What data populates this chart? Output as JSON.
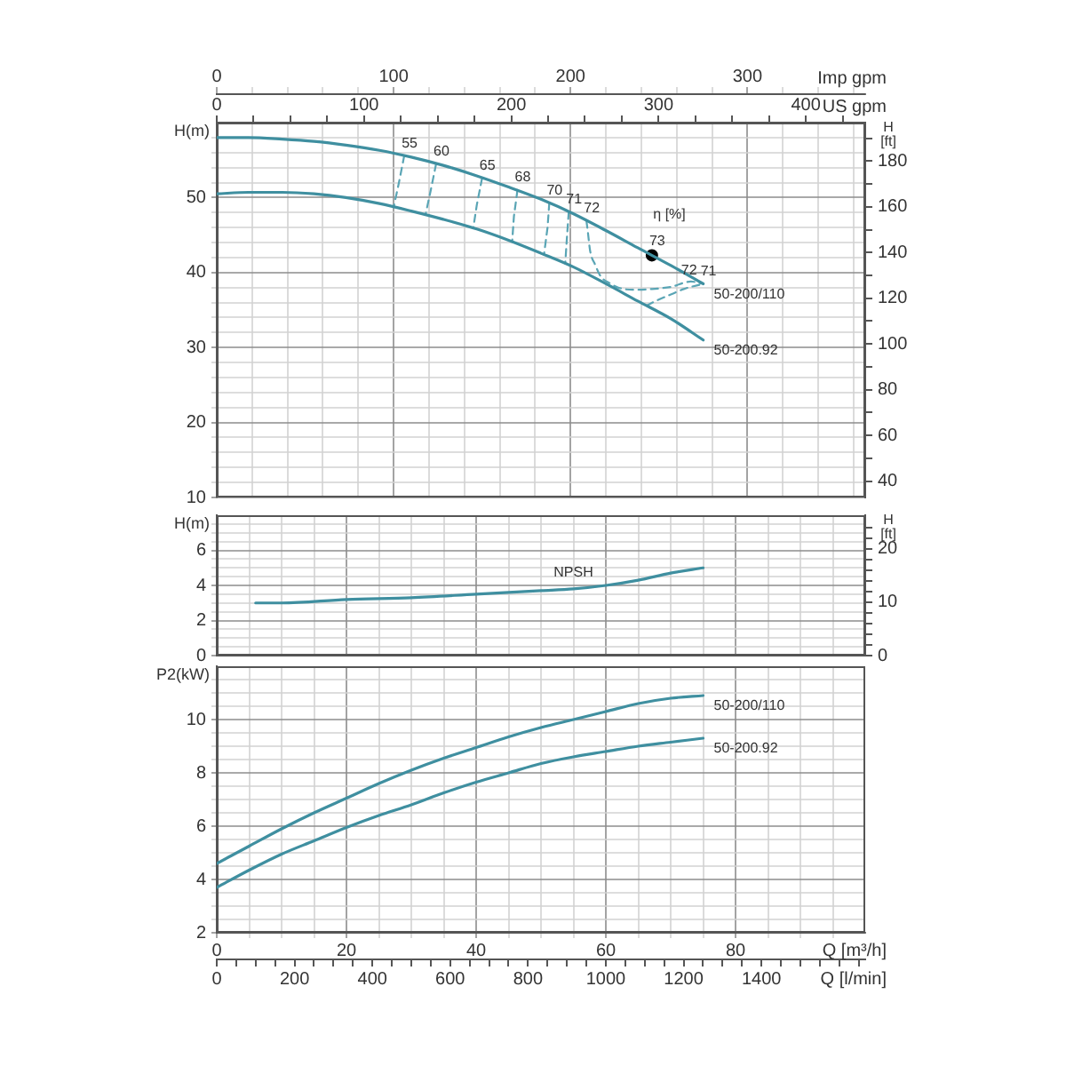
{
  "chart_data": [
    {
      "type": "line",
      "ylabel": "H(m)",
      "y2label": "H [ft]",
      "xlabel": "Imp gpm",
      "x2label": "US gpm",
      "x": [
        0,
        18,
        37,
        55,
        73,
        92,
        110,
        128,
        147,
        165,
        183,
        202,
        220,
        238,
        257,
        275
      ],
      "xlim": [
        0,
        366.6
      ],
      "xticks": [
        0,
        {
          "value": 20,
          "label": null
        },
        {
          "value": 40,
          "label": null
        },
        {
          "value": 60,
          "label": null
        },
        {
          "value": 80,
          "label": null
        },
        100,
        {
          "value": 120,
          "label": null
        },
        {
          "value": 140,
          "label": null
        },
        {
          "value": 160,
          "label": null
        },
        {
          "value": 180,
          "label": null
        },
        200,
        {
          "value": 220,
          "label": null
        },
        {
          "value": 240,
          "label": null
        },
        {
          "value": 260,
          "label": null
        },
        {
          "value": 280,
          "label": null
        },
        300,
        {
          "value": 320,
          "label": null
        },
        {
          "value": 340,
          "label": null
        },
        {
          "value": 360,
          "label": null
        }
      ],
      "x2lim": [
        0,
        440.3
      ],
      "x2ticks": [
        0,
        {
          "value": 25,
          "label": null
        },
        {
          "value": 50,
          "label": null
        },
        {
          "value": 75,
          "label": null
        },
        100,
        {
          "value": 125,
          "label": null
        },
        {
          "value": 150,
          "label": null
        },
        {
          "value": 175,
          "label": null
        },
        200,
        {
          "value": 225,
          "label": null
        },
        {
          "value": 250,
          "label": null
        },
        {
          "value": 275,
          "label": null
        },
        300,
        {
          "value": 325,
          "label": null
        },
        {
          "value": 350,
          "label": null
        },
        {
          "value": 375,
          "label": null
        },
        400,
        {
          "value": 425,
          "label": null
        }
      ],
      "ylim": [
        10,
        60
      ],
      "yticks": [
        10,
        {
          "value": 12,
          "label": null
        },
        {
          "value": 14,
          "label": null
        },
        {
          "value": 16,
          "label": null
        },
        {
          "value": 18,
          "label": null
        },
        20,
        {
          "value": 22,
          "label": null
        },
        {
          "value": 24,
          "label": null
        },
        {
          "value": 26,
          "label": null
        },
        {
          "value": 28,
          "label": null
        },
        30,
        {
          "value": 32,
          "label": null
        },
        {
          "value": 34,
          "label": null
        },
        {
          "value": 36,
          "label": null
        },
        {
          "value": 38,
          "label": null
        },
        40,
        {
          "value": 42,
          "label": null
        },
        {
          "value": 44,
          "label": null
        },
        {
          "value": 46,
          "label": null
        },
        {
          "value": 48,
          "label": null
        },
        50,
        {
          "value": 52,
          "label": null
        },
        {
          "value": 54,
          "label": null
        },
        {
          "value": 56,
          "label": null
        },
        {
          "value": 58,
          "label": null
        }
      ],
      "y2lim": [
        32.81,
        196.85
      ],
      "y2ticks": [
        40,
        {
          "value": 50,
          "label": null
        },
        60,
        {
          "value": 70,
          "label": null
        },
        80,
        {
          "value": 90,
          "label": null
        },
        100,
        {
          "value": 110,
          "label": null
        },
        120,
        {
          "value": 130,
          "label": null
        },
        140,
        {
          "value": 150,
          "label": null
        },
        160,
        {
          "value": 170,
          "label": null
        },
        180,
        {
          "value": 190,
          "label": null
        }
      ],
      "grid": true,
      "marker": "none",
      "series": [
        {
          "name": "50-200/110",
          "color": "#3f8fa0",
          "values": [
            58,
            58,
            57.8,
            57.5,
            57,
            56.3,
            55.4,
            54.3,
            52.9,
            51.4,
            49.8,
            47.8,
            45.6,
            43.3,
            40.9,
            38.5
          ]
        },
        {
          "name": "50-200.92",
          "color": "#3f8fa0",
          "values": [
            50.5,
            50.7,
            50.7,
            50.5,
            50,
            49.2,
            48.2,
            47.1,
            45.8,
            44.3,
            42.6,
            40.7,
            38.5,
            36.2,
            33.8,
            31
          ]
        },
        {
          "type": "line",
          "color": "#5aa5b5",
          "line_style": "dashed",
          "x": [
            106,
            103,
            100
          ],
          "values": [
            55.6,
            52,
            48.7
          ]
        },
        {
          "type": "line",
          "color": "#5aa5b5",
          "line_style": "dashed",
          "x": [
            124,
            121,
            118
          ],
          "values": [
            54.5,
            51,
            47.7
          ]
        },
        {
          "type": "line",
          "color": "#5aa5b5",
          "line_style": "dashed",
          "x": [
            150,
            147,
            145
          ],
          "values": [
            52.6,
            49,
            45.9
          ]
        },
        {
          "type": "line",
          "color": "#5aa5b5",
          "line_style": "dashed",
          "x": [
            170,
            168,
            167
          ],
          "values": [
            51,
            47.5,
            44.1
          ]
        },
        {
          "type": "line",
          "color": "#5aa5b5",
          "line_style": "dashed",
          "x": [
            188,
            187,
            185
          ],
          "values": [
            49.3,
            46,
            42.4
          ]
        },
        {
          "type": "line",
          "color": "#5aa5b5",
          "line_style": "dashed",
          "x": [
            199,
            198,
            197
          ],
          "values": [
            48.1,
            44.8,
            41.2
          ]
        },
        {
          "type": "line",
          "color": "#5aa5b5",
          "line_style": "dashed",
          "x": [
            209,
            210,
            211,
            214,
            217,
            222,
            227,
            235,
            246,
            257,
            268,
            275
          ],
          "values": [
            46.9,
            45,
            43,
            41,
            39.5,
            38.6,
            38,
            37.7,
            37.8,
            38.1,
            38.8,
            38.5
          ]
        },
        {
          "type": "line",
          "color": "#5aa5b5",
          "line_style": "dashed",
          "x": [
            243,
            249,
            257,
            264,
            275
          ],
          "values": [
            35.6,
            36.3,
            37.1,
            37.8,
            38.5
          ]
        },
        {
          "type": "scatter",
          "name": "73",
          "color": "#000000",
          "marker": "circle",
          "x": [
            246
          ],
          "values": [
            42.3
          ]
        }
      ],
      "annotations": [
        {
          "text": "55",
          "x": 106,
          "y": 55.6
        },
        {
          "text": "60",
          "x": 124,
          "y": 54.5
        },
        {
          "text": "65",
          "x": 150,
          "y": 52.6
        },
        {
          "text": "68",
          "x": 170,
          "y": 51
        },
        {
          "text": "70",
          "x": 188,
          "y": 49.3
        },
        {
          "text": "71",
          "x": 199,
          "y": 48.1
        },
        {
          "text": "72",
          "x": 209,
          "y": 46.9
        },
        "η [%]",
        {
          "text": "72",
          "x": 264,
          "y": 38.6
        },
        {
          "text": "71",
          "x": 275,
          "y": 38.5
        }
      ]
    },
    {
      "type": "line",
      "ylabel": "H(m)",
      "y2label": "H [ft]",
      "xlim": [
        0,
        100
      ],
      "xticks": [
        0,
        {
          "value": 5,
          "label": null
        },
        {
          "value": 10,
          "label": null
        },
        {
          "value": 15,
          "label": null
        },
        20,
        {
          "value": 25,
          "label": null
        },
        {
          "value": 30,
          "label": null
        },
        {
          "value": 35,
          "label": null
        },
        40,
        {
          "value": 45,
          "label": null
        },
        {
          "value": 50,
          "label": null
        },
        {
          "value": 55,
          "label": null
        },
        60,
        {
          "value": 65,
          "label": null
        },
        {
          "value": 70,
          "label": null
        },
        {
          "value": 75,
          "label": null
        },
        80,
        {
          "value": 85,
          "label": null
        },
        {
          "value": 90,
          "label": null
        },
        {
          "value": 95,
          "label": null
        }
      ],
      "ylim": [
        0,
        8
      ],
      "yticks": [
        0,
        {
          "value": 0.5,
          "label": null
        },
        {
          "value": 1,
          "label": null
        },
        {
          "value": 1.5,
          "label": null
        },
        2,
        {
          "value": 2.5,
          "label": null
        },
        {
          "value": 3,
          "label": null
        },
        {
          "value": 3.5,
          "label": null
        },
        4,
        {
          "value": 4.5,
          "label": null
        },
        {
          "value": 5,
          "label": null
        },
        {
          "value": 5.5,
          "label": null
        },
        6,
        {
          "value": 6.5,
          "label": null
        },
        {
          "value": 7,
          "label": null
        },
        {
          "value": 7.5,
          "label": null
        }
      ],
      "y2lim": [
        0,
        26.25
      ],
      "y2ticks": [
        0,
        {
          "value": 2,
          "label": null
        },
        {
          "value": 4,
          "label": null
        },
        {
          "value": 6,
          "label": null
        },
        {
          "value": 8,
          "label": null
        },
        10,
        {
          "value": 12,
          "label": null
        },
        {
          "value": 14,
          "label": null
        },
        {
          "value": 16,
          "label": null
        },
        {
          "value": 18,
          "label": null
        },
        20,
        {
          "value": 22,
          "label": null
        },
        {
          "value": 24,
          "label": null
        }
      ],
      "tick_labels": "y",
      "grid": true,
      "marker": "none",
      "series": [
        {
          "name": "NPSH",
          "color": "#3f8fa0",
          "x": [
            6,
            10,
            20,
            30,
            40,
            50,
            55,
            60,
            65,
            70,
            75
          ],
          "values": [
            3,
            3,
            3.2,
            3.3,
            3.5,
            3.7,
            3.8,
            4,
            4.3,
            4.7,
            5
          ]
        }
      ]
    },
    {
      "type": "line",
      "ylabel": "P2(kW)",
      "xlabel": "Q [m³/h]",
      "x2label": "Q [l/min]",
      "x": [
        0,
        5,
        10,
        15,
        20,
        25,
        30,
        35,
        40,
        45,
        50,
        55,
        60,
        65,
        70,
        75
      ],
      "xlim": [
        0,
        100
      ],
      "xticks": [
        0,
        {
          "value": 5,
          "label": null
        },
        {
          "value": 10,
          "label": null
        },
        {
          "value": 15,
          "label": null
        },
        20,
        {
          "value": 25,
          "label": null
        },
        {
          "value": 30,
          "label": null
        },
        {
          "value": 35,
          "label": null
        },
        40,
        {
          "value": 45,
          "label": null
        },
        {
          "value": 50,
          "label": null
        },
        {
          "value": 55,
          "label": null
        },
        60,
        {
          "value": 65,
          "label": null
        },
        {
          "value": 70,
          "label": null
        },
        {
          "value": 75,
          "label": null
        },
        80,
        {
          "value": 85,
          "label": null
        },
        {
          "value": 90,
          "label": null
        },
        {
          "value": 95,
          "label": null
        }
      ],
      "x2lim": [
        0,
        1666.7
      ],
      "x2ticks": [
        0,
        {
          "value": 50,
          "label": null
        },
        {
          "value": 100,
          "label": null
        },
        {
          "value": 150,
          "label": null
        },
        200,
        {
          "value": 250,
          "label": null
        },
        {
          "value": 300,
          "label": null
        },
        {
          "value": 350,
          "label": null
        },
        400,
        {
          "value": 450,
          "label": null
        },
        {
          "value": 500,
          "label": null
        },
        {
          "value": 550,
          "label": null
        },
        600,
        {
          "value": 650,
          "label": null
        },
        {
          "value": 700,
          "label": null
        },
        {
          "value": 750,
          "label": null
        },
        800,
        {
          "value": 850,
          "label": null
        },
        {
          "value": 900,
          "label": null
        },
        {
          "value": 950,
          "label": null
        },
        1000,
        {
          "value": 1050,
          "label": null
        },
        {
          "value": 1100,
          "label": null
        },
        {
          "value": 1150,
          "label": null
        },
        1200,
        {
          "value": 1250,
          "label": null
        },
        {
          "value": 1300,
          "label": null
        },
        {
          "value": 1350,
          "label": null
        },
        1400,
        {
          "value": 1450,
          "label": null
        },
        {
          "value": 1500,
          "label": null
        },
        {
          "value": 1550,
          "label": null
        },
        {
          "value": 1600,
          "label": null
        },
        {
          "value": 1650,
          "label": null
        }
      ],
      "ylim": [
        2,
        12
      ],
      "yticks": [
        2,
        {
          "value": 2.5,
          "label": null
        },
        {
          "value": 3,
          "label": null
        },
        {
          "value": 3.5,
          "label": null
        },
        4,
        {
          "value": 4.5,
          "label": null
        },
        {
          "value": 5,
          "label": null
        },
        {
          "value": 5.5,
          "label": null
        },
        6,
        {
          "value": 6.5,
          "label": null
        },
        {
          "value": 7,
          "label": null
        },
        {
          "value": 7.5,
          "label": null
        },
        8,
        {
          "value": 8.5,
          "label": null
        },
        {
          "value": 9,
          "label": null
        },
        {
          "value": 9.5,
          "label": null
        },
        10,
        {
          "value": 10.5,
          "label": null
        },
        {
          "value": 11,
          "label": null
        },
        {
          "value": 11.5,
          "label": null
        }
      ],
      "grid": true,
      "marker": "none",
      "series": [
        {
          "name": "50-200/110",
          "color": "#3f8fa0",
          "values": [
            4.6,
            5.25,
            5.9,
            6.5,
            7.05,
            7.6,
            8.1,
            8.55,
            8.95,
            9.35,
            9.7,
            10,
            10.3,
            10.6,
            10.8,
            10.9
          ]
        },
        {
          "name": "50-200.92",
          "color": "#3f8fa0",
          "values": [
            3.7,
            4.35,
            4.95,
            5.45,
            5.95,
            6.4,
            6.8,
            7.25,
            7.65,
            8,
            8.35,
            8.6,
            8.8,
            9,
            9.15,
            9.3
          ]
        }
      ]
    }
  ]
}
